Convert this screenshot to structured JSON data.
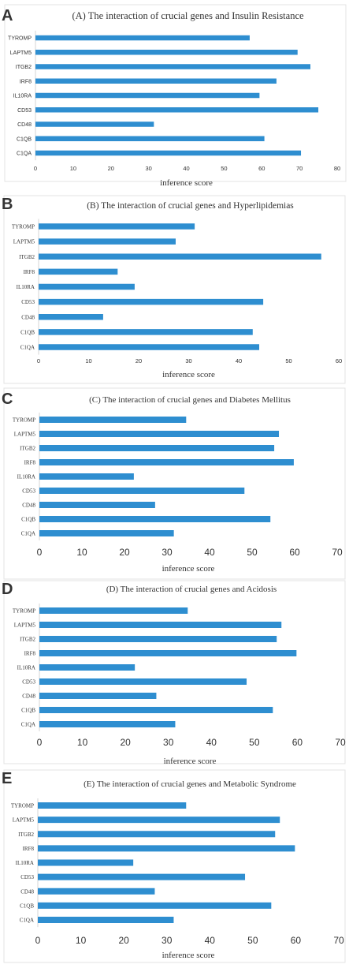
{
  "chart_data": [
    {
      "letter": "A",
      "type": "bar",
      "orientation": "horizontal",
      "title": "(A) The interaction of crucial genes and Insulin Resistance",
      "xlabel": "inference score",
      "ylabel": "",
      "categories": [
        "TYROMP",
        "LAPTM5",
        "ITGB2",
        "IRF8",
        "IL10RA",
        "CD53",
        "CD48",
        "C1QB",
        "C1QA"
      ],
      "values": [
        56.8,
        69.5,
        72.9,
        63.9,
        59.4,
        75.0,
        31.4,
        60.7,
        70.4
      ],
      "xlim": [
        0,
        80
      ],
      "ticks": [
        "0",
        "10",
        "20",
        "30",
        "40",
        "50",
        "60",
        "70",
        "80"
      ],
      "grid": false,
      "bar_color": "#2e8ed0"
    },
    {
      "letter": "B",
      "type": "bar",
      "orientation": "horizontal",
      "title": "(B) The interaction of crucial genes and Hyperlipidemias",
      "xlabel": "inference score",
      "ylabel": "",
      "categories": [
        "TYROMP",
        "LAPTM5",
        "ITGB2",
        "IRF8",
        "IL10RA",
        "CD53",
        "CD48",
        "C1QB",
        "C1QA"
      ],
      "values": [
        31.2,
        27.4,
        56.5,
        15.8,
        19.2,
        44.9,
        12.9,
        42.8,
        44.1
      ],
      "xlim": [
        0,
        60
      ],
      "ticks": [
        "0",
        "10",
        "20",
        "30",
        "40",
        "50",
        "60"
      ],
      "grid": false,
      "bar_color": "#2e8ed0"
    },
    {
      "letter": "C",
      "type": "bar",
      "orientation": "horizontal",
      "title": "(C) The interaction of crucial genes and Diabetes Mellitus",
      "xlabel": "inference score",
      "ylabel": "",
      "categories": [
        "TYROMP",
        "LAPTM5",
        "ITGB2",
        "IRF8",
        "IL10RA",
        "CD53",
        "CD48",
        "C1QB",
        "C1QA"
      ],
      "values": [
        34.5,
        56.3,
        55.2,
        59.8,
        22.2,
        48.2,
        27.2,
        54.3,
        31.6
      ],
      "xlim": [
        0,
        70
      ],
      "ticks": [
        "0",
        "10",
        "20",
        "30",
        "40",
        "50",
        "60",
        "70"
      ],
      "grid": false,
      "bar_color": "#2e8ed0"
    },
    {
      "letter": "D",
      "type": "bar",
      "orientation": "horizontal",
      "title": "(D) The interaction of crucial genes and Acidosis",
      "xlabel": "inference score",
      "ylabel": "",
      "categories": [
        "TYROMP",
        "LAPTM5",
        "ITGB2",
        "IRF8",
        "IL10RA",
        "CD53",
        "CD48",
        "C1QB",
        "C1QA"
      ],
      "values": [
        34.5,
        56.3,
        55.2,
        59.8,
        22.2,
        48.2,
        27.2,
        54.3,
        31.6
      ],
      "xlim": [
        0,
        70
      ],
      "ticks": [
        "0",
        "10",
        "20",
        "30",
        "40",
        "50",
        "60",
        "70"
      ],
      "grid": false,
      "bar_color": "#2e8ed0"
    },
    {
      "letter": "E",
      "type": "bar",
      "orientation": "horizontal",
      "title": "(E) The interaction of crucial genes and Metabolic Syndrome",
      "xlabel": "inference score",
      "ylabel": "",
      "categories": [
        "TYROMP",
        "LAPTM5",
        "ITGB2",
        "IRF8",
        "IL10RA",
        "CD53",
        "CD48",
        "C1QB",
        "C1QA"
      ],
      "values": [
        34.5,
        56.3,
        55.2,
        59.8,
        22.2,
        48.2,
        27.2,
        54.3,
        31.6
      ],
      "xlim": [
        0,
        70
      ],
      "ticks": [
        "0",
        "10",
        "20",
        "30",
        "40",
        "50",
        "60",
        "70"
      ],
      "grid": false,
      "bar_color": "#2e8ed0"
    }
  ]
}
